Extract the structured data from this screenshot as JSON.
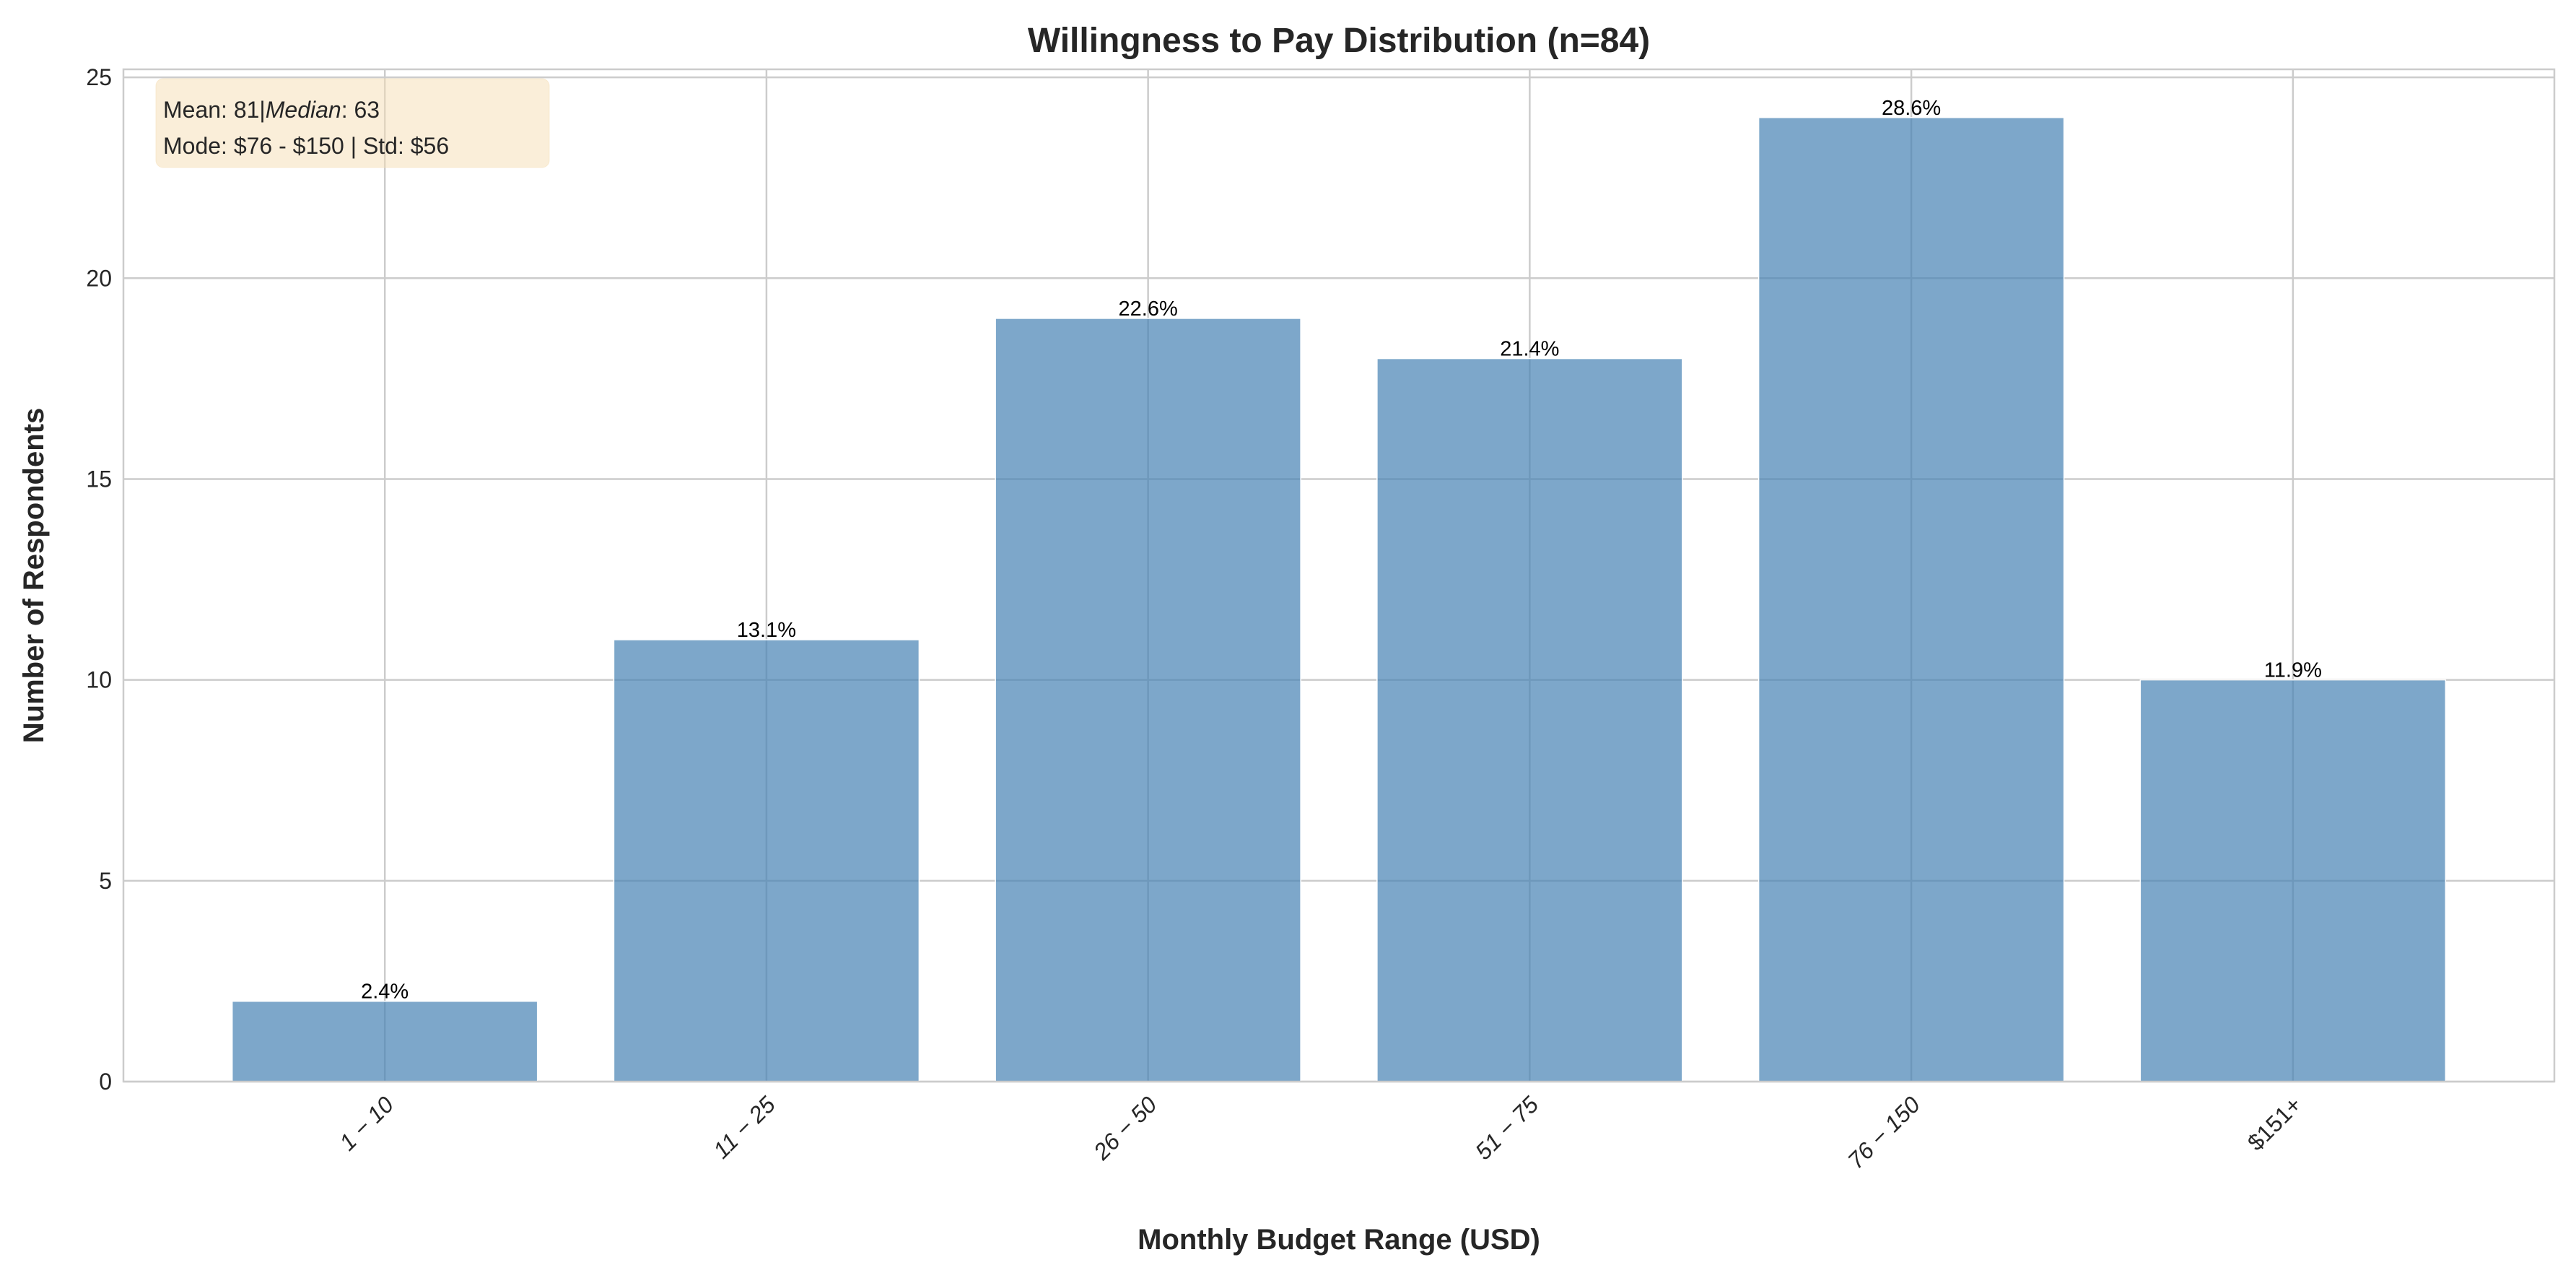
{
  "chart_data": {
    "type": "bar",
    "title": "Willingness to Pay Distribution (n=84)",
    "xlabel": "Monthly Budget Range (USD)",
    "ylabel": "Number of Respondents",
    "categories": [
      "1 − 10",
      "11 − 25",
      "26 − 50",
      "51 − 75",
      "76 − 150",
      "$151+"
    ],
    "values": [
      2,
      11,
      19,
      18,
      24,
      10
    ],
    "data_labels": [
      "2.4%",
      "13.1%",
      "22.6%",
      "21.4%",
      "28.6%",
      "11.9%"
    ],
    "ylim": [
      0,
      25.2
    ],
    "yticks": [
      0,
      5,
      10,
      15,
      20,
      25
    ],
    "grid": true,
    "bar_color": "#4682b4",
    "annotation": {
      "line1_prefix": "Mean: 81|",
      "line1_italic": "Median",
      "line1_suffix": ": 63",
      "line2": "Mode: $76 - $150 | Std: $56",
      "background": "#f5deb3"
    }
  }
}
